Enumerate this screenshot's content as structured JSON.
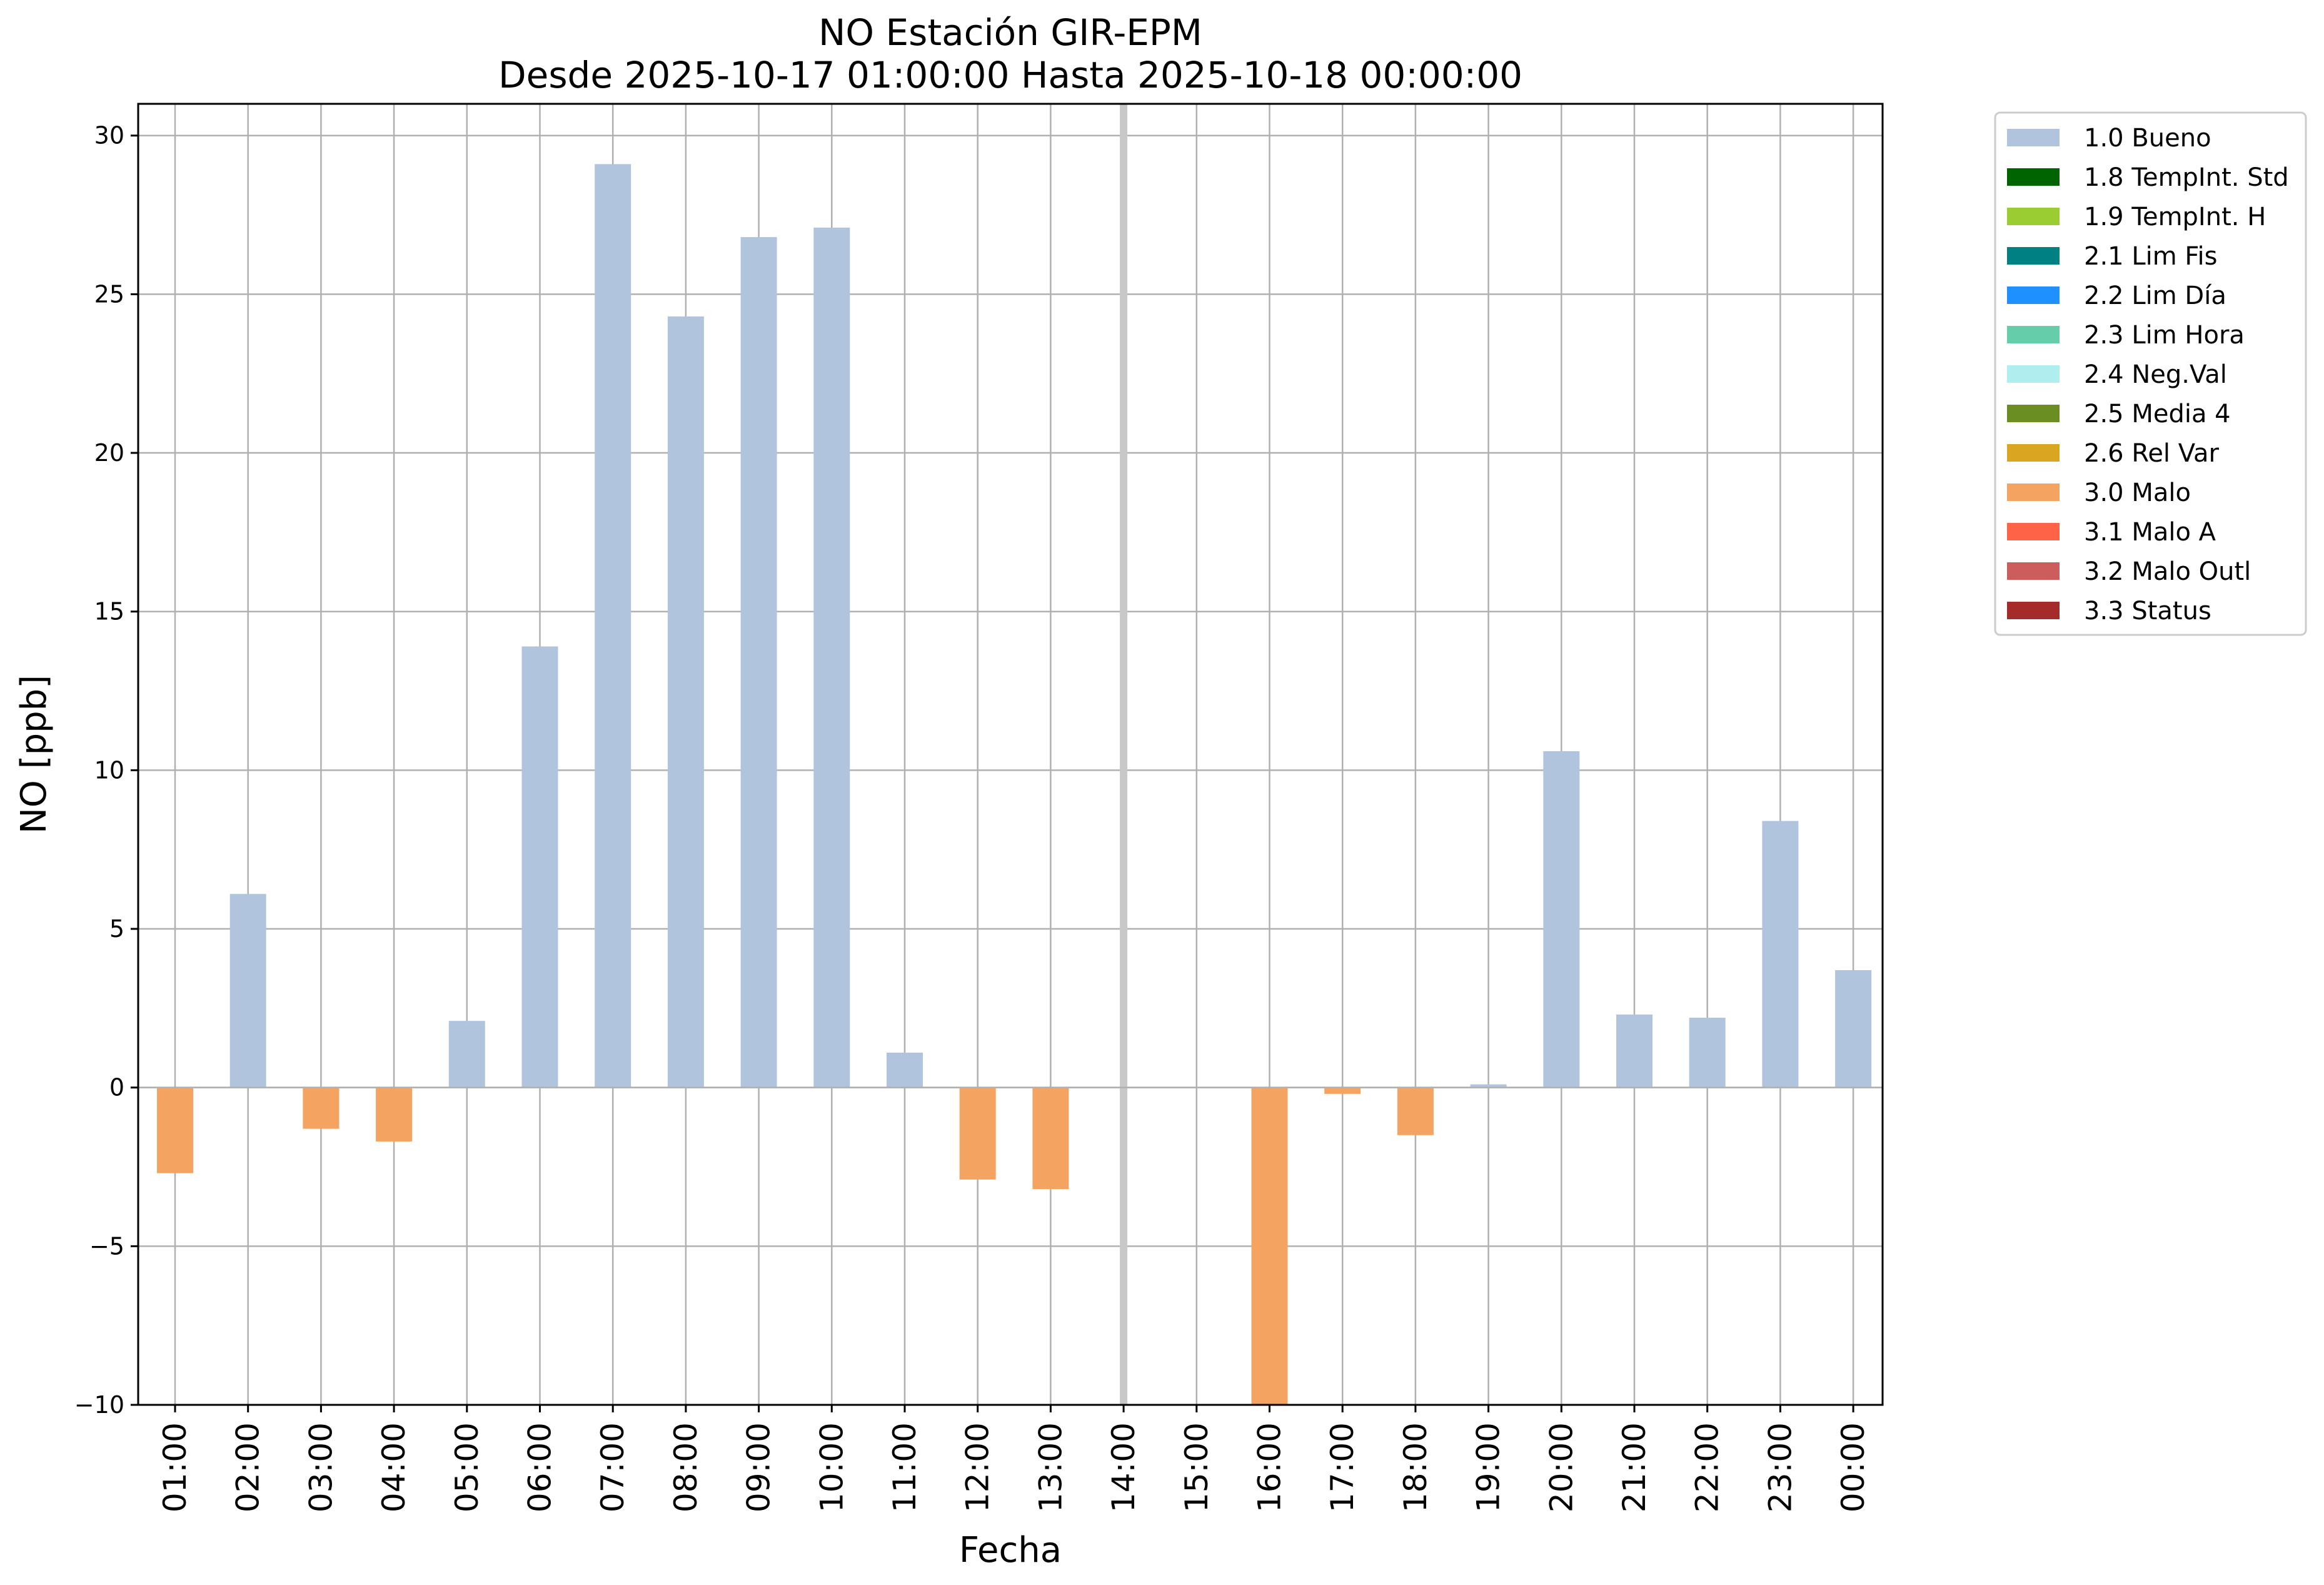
{
  "chart_data": {
    "type": "bar",
    "title": "NO Estación GIR-EPM",
    "subtitle": "Desde 2025-10-17 01:00:00 Hasta 2025-10-18 00:00:00",
    "xlabel": "Fecha",
    "ylabel": "NO [ppb]",
    "ylim": [
      -10,
      31
    ],
    "yticks": [
      -10,
      -5,
      0,
      5,
      10,
      15,
      20,
      25,
      30
    ],
    "ytick_labels": [
      "−10",
      "−5",
      "0",
      "5",
      "10",
      "15",
      "20",
      "25",
      "30"
    ],
    "grid": true,
    "legend_position": "outside right, top",
    "categories": [
      "01:00",
      "02:00",
      "03:00",
      "04:00",
      "05:00",
      "06:00",
      "07:00",
      "08:00",
      "09:00",
      "10:00",
      "11:00",
      "12:00",
      "13:00",
      "14:00",
      "15:00",
      "16:00",
      "17:00",
      "18:00",
      "19:00",
      "20:00",
      "21:00",
      "22:00",
      "23:00",
      "00:00"
    ],
    "values": [
      -2.7,
      6.1,
      -1.3,
      -1.7,
      2.1,
      13.9,
      29.1,
      24.3,
      26.8,
      27.1,
      1.1,
      -2.9,
      -3.2,
      null,
      null,
      -10,
      -0.2,
      -1.5,
      0.1,
      10.6,
      2.3,
      2.2,
      8.4,
      3.7
    ],
    "flags": [
      "3.0 Malo",
      "1.0 Bueno",
      "3.0 Malo",
      "3.0 Malo",
      "1.0 Bueno",
      "1.0 Bueno",
      "1.0 Bueno",
      "1.0 Bueno",
      "1.0 Bueno",
      "1.0 Bueno",
      "1.0 Bueno",
      "3.0 Malo",
      "3.0 Malo",
      null,
      null,
      "3.0 Malo",
      "3.0 Malo",
      "3.0 Malo",
      "1.0 Bueno",
      "1.0 Bueno",
      "1.0 Bueno",
      "1.0 Bueno",
      "1.0 Bueno",
      "1.0 Bueno"
    ],
    "marker_category": "14:00",
    "marker_color": "#c8c8c8",
    "legend": [
      {
        "label": "1.0 Bueno",
        "color": "#b0c4de"
      },
      {
        "label": "1.8 TempInt. Std",
        "color": "#006400"
      },
      {
        "label": "1.9 TempInt. H",
        "color": "#9acd32"
      },
      {
        "label": "2.1 Lim Fis",
        "color": "#008080"
      },
      {
        "label": "2.2 Lim Día",
        "color": "#1e90ff"
      },
      {
        "label": "2.3 Lim Hora",
        "color": "#66cdaa"
      },
      {
        "label": "2.4 Neg.Val",
        "color": "#afeeee"
      },
      {
        "label": "2.5 Media 4",
        "color": "#6b8e23"
      },
      {
        "label": "2.6 Rel Var",
        "color": "#daa520"
      },
      {
        "label": "3.0 Malo",
        "color": "#f4a460"
      },
      {
        "label": "3.1 Malo A",
        "color": "#ff6347"
      },
      {
        "label": "3.2 Malo Outl",
        "color": "#cd5c5c"
      },
      {
        "label": "3.3 Status",
        "color": "#a52a2a"
      }
    ]
  }
}
